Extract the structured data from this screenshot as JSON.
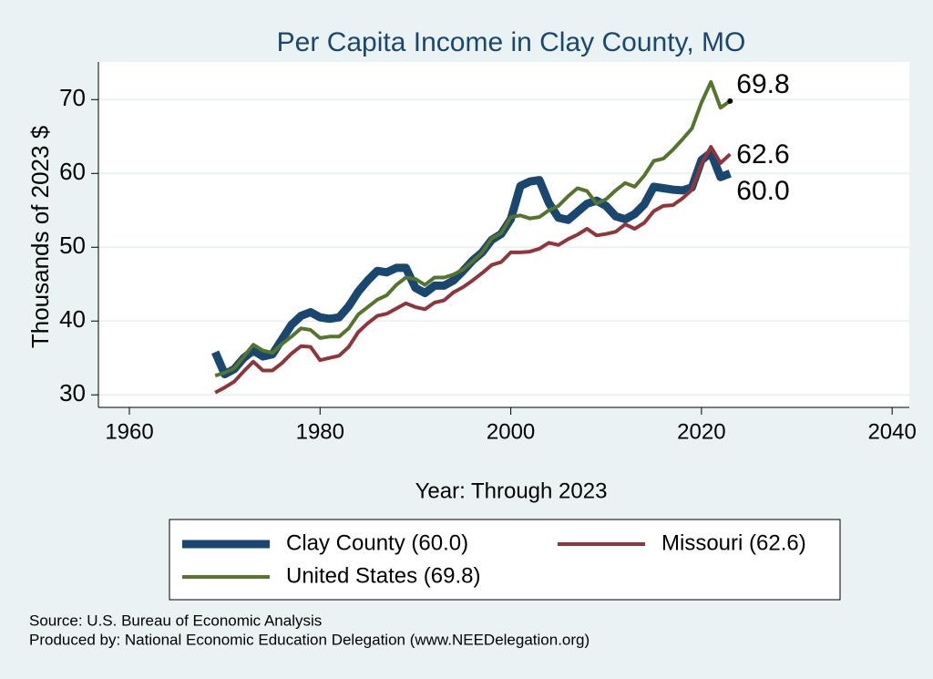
{
  "chart_data": {
    "type": "line",
    "title": "Per Capita Income in Clay County, MO",
    "y_label": "Thousands of 2023 $",
    "x_label": "Year: Through 2023",
    "x": [
      1969,
      1970,
      1971,
      1972,
      1973,
      1974,
      1975,
      1976,
      1977,
      1978,
      1979,
      1980,
      1981,
      1982,
      1983,
      1984,
      1985,
      1986,
      1987,
      1988,
      1989,
      1990,
      1991,
      1992,
      1993,
      1994,
      1995,
      1996,
      1997,
      1998,
      1999,
      2000,
      2001,
      2002,
      2003,
      2004,
      2005,
      2006,
      2007,
      2008,
      2009,
      2010,
      2011,
      2012,
      2013,
      2014,
      2015,
      2016,
      2017,
      2018,
      2019,
      2020,
      2021,
      2022,
      2023
    ],
    "series": [
      {
        "name": "Clay County (60.0)",
        "color": "#1a476f",
        "width": 9,
        "end_label": "60.0",
        "values": [
          35.8,
          32.8,
          33.5,
          35,
          36,
          35.2,
          35.5,
          37.5,
          39.5,
          40.7,
          41.2,
          40.5,
          40.3,
          40.5,
          42,
          44,
          45.5,
          46.8,
          46.6,
          47.2,
          47.2,
          44.5,
          43.8,
          44.8,
          44.8,
          45.5,
          46.8,
          48.2,
          49.3,
          51,
          51.8,
          53.8,
          58.3,
          58.9,
          59.1,
          56,
          54,
          53.7,
          54.8,
          55.9,
          56.3,
          55.6,
          54.2,
          53.8,
          54.5,
          55.8,
          58.2,
          58,
          57.8,
          57.7,
          58.1,
          61.8,
          62.8,
          59.5,
          60.0
        ]
      },
      {
        "name": "Missouri (62.6)",
        "color": "#90353b",
        "width": 4,
        "end_label": "62.6",
        "values": [
          30.3,
          31,
          31.8,
          33.2,
          34.5,
          33.3,
          33.3,
          34.3,
          35.6,
          36.6,
          36.5,
          34.7,
          35,
          35.3,
          36.5,
          38.5,
          39.7,
          40.7,
          41,
          41.7,
          42.4,
          41.9,
          41.6,
          42.5,
          42.8,
          43.9,
          44.6,
          45.5,
          46.5,
          47.6,
          48,
          49.3,
          49.3,
          49.4,
          49.8,
          50.6,
          50.3,
          51.1,
          51.7,
          52.5,
          51.6,
          51.8,
          52.1,
          53.1,
          52.5,
          53.3,
          54.9,
          55.6,
          55.7,
          56.6,
          57.8,
          61.3,
          63.6,
          61.4,
          62.6
        ]
      },
      {
        "name": "United States (69.8)",
        "color": "#55752f",
        "width": 4,
        "end_label": "69.8",
        "values": [
          32.6,
          33,
          33.6,
          35.2,
          36.8,
          36,
          35.7,
          36.9,
          37.9,
          39,
          38.8,
          37.7,
          37.9,
          37.9,
          39,
          40.9,
          41.9,
          42.9,
          43.5,
          44.9,
          45.9,
          45.7,
          44.9,
          45.9,
          45.9,
          46.3,
          47,
          48.1,
          49.3,
          51.2,
          51.9,
          54.1,
          54.3,
          53.9,
          54.1,
          55,
          55.6,
          56.9,
          58,
          57.6,
          55.9,
          56.5,
          57.7,
          58.7,
          58.2,
          59.7,
          61.7,
          62,
          63.2,
          64.6,
          66.1,
          69.6,
          72.4,
          68.9,
          69.8
        ]
      }
    ],
    "xlim": [
      1956.75,
      2041.8
    ],
    "ylim": [
      28.3,
      75.1
    ],
    "xticks": [
      1960,
      1980,
      2000,
      2020,
      2040
    ],
    "yticks": [
      30,
      40,
      50,
      60,
      70
    ],
    "grid": true,
    "notes": [
      "Source: U.S. Bureau of Economic Analysis",
      "Produced by: National Economic Education Delegation (www.NEEDelegation.org)"
    ]
  }
}
